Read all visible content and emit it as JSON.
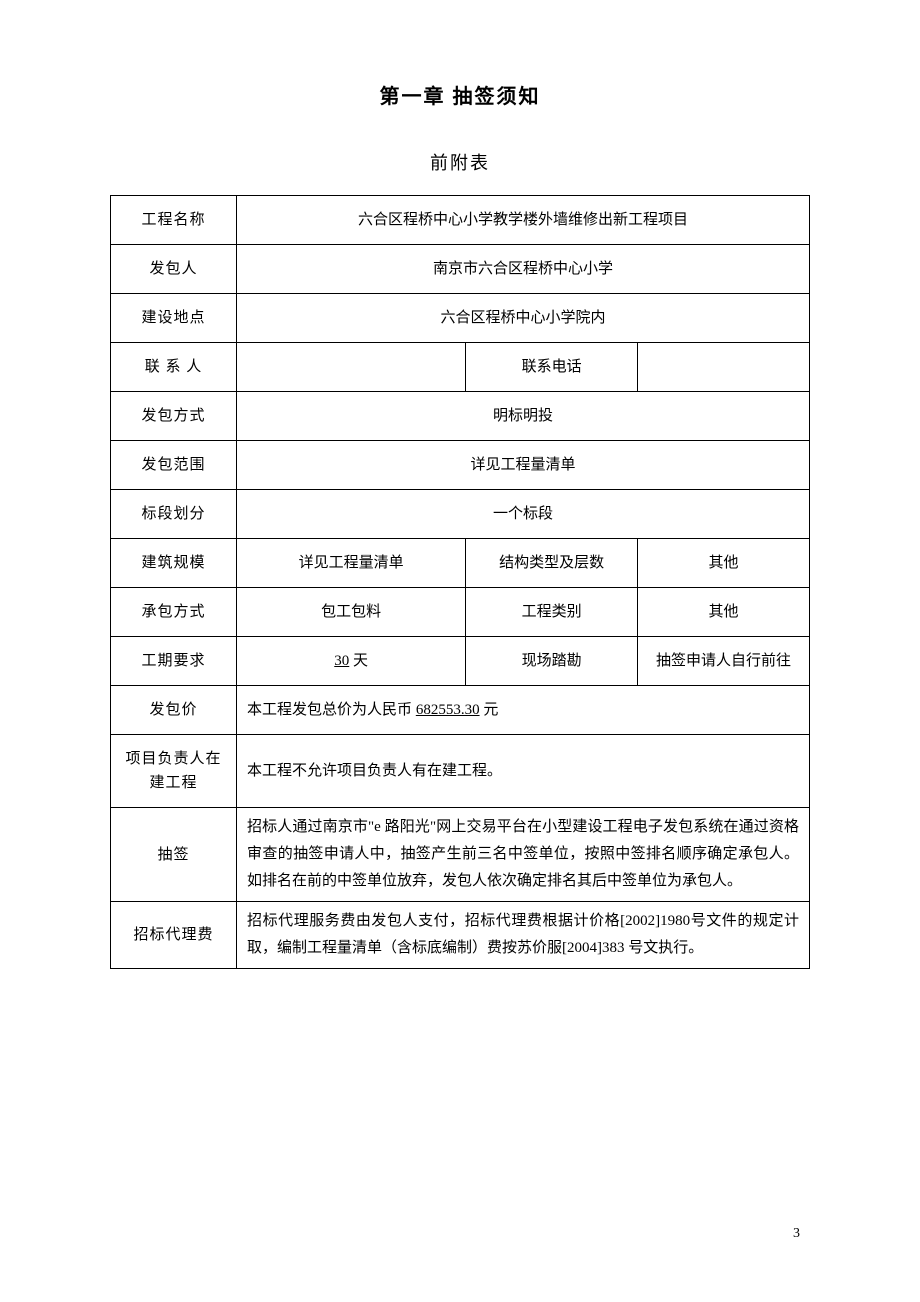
{
  "chapter_title": "第一章 抽签须知",
  "sub_title": "前附表",
  "rows": {
    "project_name": {
      "label": "工程名称",
      "value": "六合区程桥中心小学教学楼外墙维修出新工程项目"
    },
    "client": {
      "label": "发包人",
      "value": "南京市六合区程桥中心小学"
    },
    "location": {
      "label": "建设地点",
      "value": "六合区程桥中心小学院内"
    },
    "contact": {
      "label": "联 系 人",
      "value": "",
      "phone_label": "联系电话",
      "phone_value": ""
    },
    "method": {
      "label": "发包方式",
      "value": "明标明投"
    },
    "scope": {
      "label": "发包范围",
      "value": "详见工程量清单"
    },
    "section": {
      "label": "标段划分",
      "value": "一个标段"
    },
    "scale": {
      "label": "建筑规模",
      "value": "详见工程量清单",
      "structure_label": "结构类型及层数",
      "structure_value": "其他"
    },
    "contract_type": {
      "label": "承包方式",
      "value": "包工包料",
      "category_label": "工程类别",
      "category_value": "其他"
    },
    "duration": {
      "label": "工期要求",
      "value_prefix": "",
      "value_underline": "30",
      "value_suffix": " 天",
      "site_label": "现场踏勘",
      "site_value": "抽签申请人自行前往"
    },
    "price": {
      "label": "发包价",
      "value_prefix": "本工程发包总价为人民币 ",
      "value_underline": "682553.30",
      "value_suffix": " 元"
    },
    "manager": {
      "label": "项目负责人在建工程",
      "value": "本工程不允许项目负责人有在建工程。"
    },
    "lottery": {
      "label": "抽签",
      "value": "招标人通过南京市\"e 路阳光\"网上交易平台在小型建设工程电子发包系统在通过资格审查的抽签申请人中，抽签产生前三名中签单位，按照中签排名顺序确定承包人。如排名在前的中签单位放弃，发包人依次确定排名其后中签单位为承包人。"
    },
    "agency_fee": {
      "label": "招标代理费",
      "value": "招标代理服务费由发包人支付，招标代理费根据计价格[2002]1980号文件的规定计取，编制工程量清单（含标底编制）费按苏价服[2004]383 号文执行。"
    }
  },
  "page_number": "3"
}
